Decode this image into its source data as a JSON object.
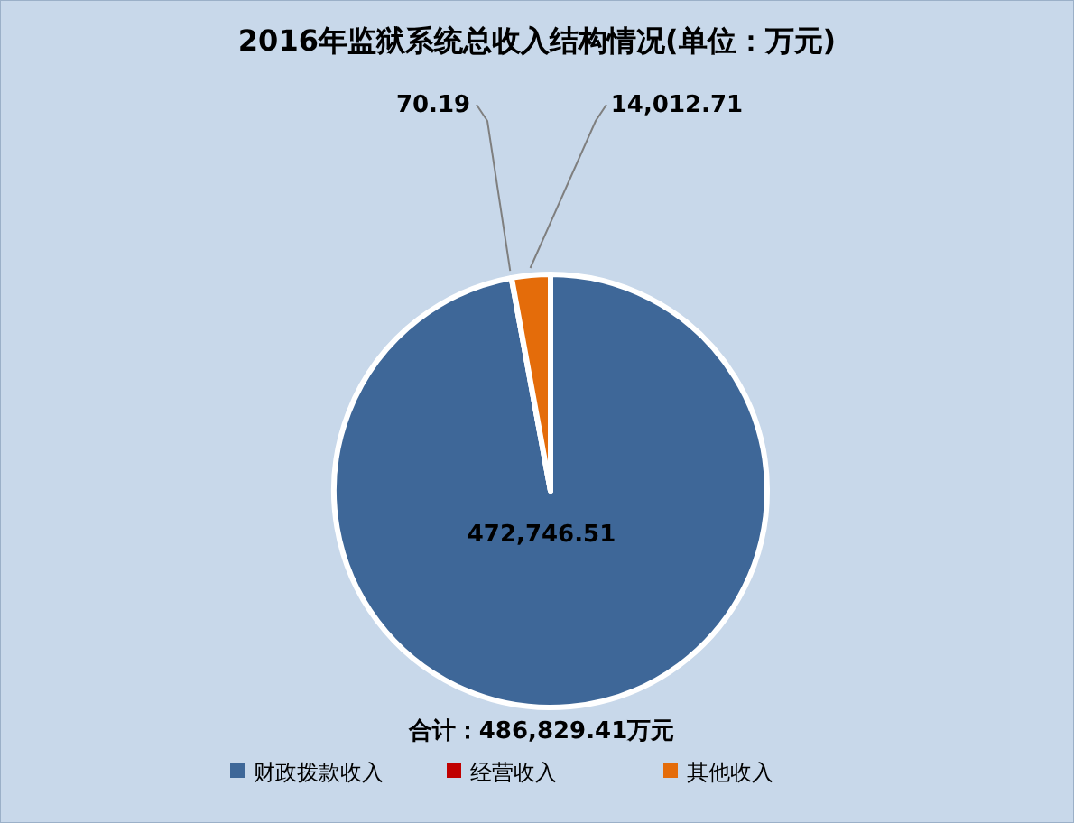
{
  "chart_data": {
    "type": "pie",
    "title": "2016年监狱系统总收入结构情况(单位：万元)",
    "categories": [
      "财政拨款收入",
      "经营收入",
      "其他收入"
    ],
    "values": [
      472746.51,
      70.19,
      14012.71
    ],
    "value_labels": [
      "472,746.51",
      "70.19",
      "14,012.71"
    ],
    "colors": [
      "#3e6798",
      "#c00000",
      "#e46c0a"
    ],
    "annotations": [
      "合计：486,829.41万元"
    ],
    "legend": "bottom"
  }
}
